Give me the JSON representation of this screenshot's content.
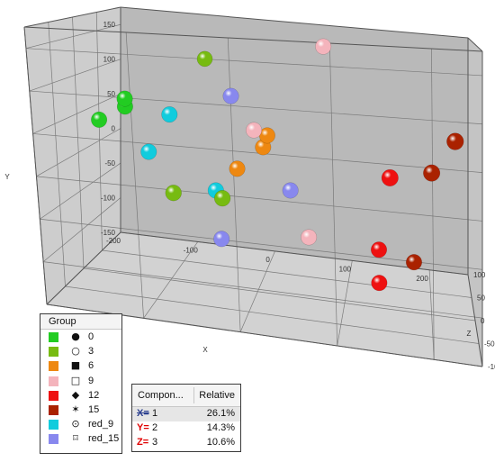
{
  "chart_data": {
    "type": "scatter",
    "title": "",
    "axes": {
      "x": {
        "label": "X",
        "range": [
          -200,
          250
        ],
        "ticks": [
          "-200",
          "-100",
          "0",
          "100",
          "200"
        ]
      },
      "y": {
        "label": "Y",
        "range": [
          -150,
          175
        ],
        "ticks": [
          "-150",
          "-100",
          "-50",
          "0",
          "50",
          "100",
          "150"
        ]
      },
      "z": {
        "label": "Z",
        "range": [
          -100,
          100
        ],
        "ticks": [
          "-100",
          "-50",
          "0",
          "50",
          "100"
        ]
      }
    },
    "grid": true,
    "series": [
      {
        "name": "0",
        "color": "#22cc22",
        "symbol": "●",
        "points": [
          [
            -175,
            45,
            0
          ],
          [
            -145,
            65,
            0
          ],
          [
            -145,
            75,
            0
          ]
        ]
      },
      {
        "name": "3",
        "color": "#77bb11",
        "symbol": "○",
        "points": [
          [
            -60,
            130,
            20
          ],
          [
            -90,
            -35,
            -10
          ],
          [
            -35,
            -35,
            -10
          ]
        ]
      },
      {
        "name": "6",
        "color": "#ee8811",
        "symbol": "■",
        "points": [
          [
            -20,
            0,
            0
          ],
          [
            10,
            30,
            0
          ],
          [
            15,
            45,
            0
          ]
        ]
      },
      {
        "name": "9",
        "color": "#f4b4bc",
        "symbol": "□",
        "points": [
          [
            0,
            50,
            0
          ],
          [
            60,
            -75,
            0
          ],
          [
            80,
            160,
            0
          ]
        ]
      },
      {
        "name": "12",
        "color": "#ee1111",
        "symbol": "◆",
        "points": [
          [
            155,
            20,
            -40
          ],
          [
            140,
            -120,
            0
          ],
          [
            140,
            -80,
            0
          ]
        ]
      },
      {
        "name": "15",
        "color": "#aa2200",
        "symbol": "✶",
        "points": [
          [
            225,
            70,
            -50
          ],
          [
            200,
            30,
            -40
          ],
          [
            180,
            -90,
            0
          ]
        ]
      },
      {
        "name": "red_9",
        "color": "#11ccdd",
        "symbol": "⊙",
        "points": [
          [
            -120,
            10,
            0
          ],
          [
            -95,
            60,
            0
          ],
          [
            -45,
            -30,
            0
          ]
        ]
      },
      {
        "name": "red_15",
        "color": "#8888ee",
        "symbol": "⌑",
        "points": [
          [
            -25,
            90,
            0
          ],
          [
            40,
            -20,
            0
          ],
          [
            -40,
            -90,
            0
          ]
        ]
      }
    ]
  },
  "legend": {
    "title": "Group",
    "items": [
      {
        "label": "0",
        "color": "#22cc22",
        "symbol": "●"
      },
      {
        "label": "3",
        "color": "#77bb11",
        "symbol": "○"
      },
      {
        "label": "6",
        "color": "#ee8811",
        "symbol": "■"
      },
      {
        "label": "9",
        "color": "#f4b4bc",
        "symbol": "□"
      },
      {
        "label": "12",
        "color": "#ee1111",
        "symbol": "◆"
      },
      {
        "label": "15",
        "color": "#aa2200",
        "symbol": "✶"
      },
      {
        "label": "red_9",
        "color": "#11ccdd",
        "symbol": "⊙"
      },
      {
        "label": "red_15",
        "color": "#8888ee",
        "symbol": "⌑"
      }
    ]
  },
  "components": {
    "header_component": "Compon...",
    "header_relative": "Relative",
    "rows": [
      {
        "axis": "X",
        "suffix": "=",
        "component": "1",
        "relative": "26.1%",
        "selected": true
      },
      {
        "axis": "Y",
        "suffix": "=",
        "component": "2",
        "relative": "14.3%",
        "selected": false
      },
      {
        "axis": "Z",
        "suffix": "=",
        "component": "3",
        "relative": "10.6%",
        "selected": false
      }
    ]
  }
}
